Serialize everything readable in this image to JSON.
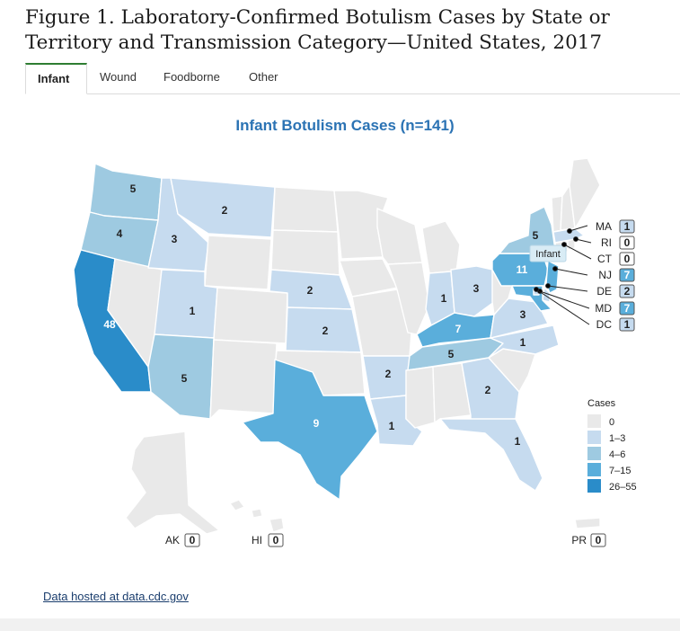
{
  "figure": {
    "title": "Figure 1. Laboratory-Confirmed Botulism Cases by State or Territory and Transmission Category—United States, 2017"
  },
  "tabs": [
    {
      "label": "Infant",
      "active": true
    },
    {
      "label": "Wound",
      "active": false
    },
    {
      "label": "Foodborne",
      "active": false
    },
    {
      "label": "Other",
      "active": false
    }
  ],
  "map": {
    "title": "Infant Botulism Cases (n=141)",
    "tooltip": "Infant",
    "colors": {
      "0": "#e9e9e9",
      "1-3": "#c6dbef",
      "4-6": "#9ecae1",
      "7-15": "#5aaedb",
      "26-55": "#2a8cc9"
    },
    "legend": {
      "title": "Cases",
      "items": [
        {
          "label": "0",
          "color": "#e9e9e9"
        },
        {
          "label": "1–3",
          "color": "#c6dbef"
        },
        {
          "label": "4–6",
          "color": "#9ecae1"
        },
        {
          "label": "7–15",
          "color": "#5aaedb"
        },
        {
          "label": "26–55",
          "color": "#2a8cc9"
        }
      ]
    },
    "states": {
      "WA": 5,
      "OR": 4,
      "CA": 48,
      "ID": 3,
      "MT": 2,
      "UT": 1,
      "AZ": 5,
      "NE": 2,
      "KS": 2,
      "TX": 9,
      "AR": 2,
      "LA": 1,
      "IN": 1,
      "OH": 3,
      "KY": 7,
      "TN": 5,
      "VA": 3,
      "NC": 1,
      "GA": 2,
      "FL": 1,
      "NY": 5,
      "PA": 11,
      "NJ": 7,
      "MD": 7,
      "DE": 2,
      "DC": 1,
      "MA": 1,
      "RI": 0,
      "CT": 0,
      "NV": 0,
      "WY": 0,
      "CO": 0,
      "NM": 0,
      "OK": 0,
      "ND": 0,
      "SD": 0,
      "MN": 0,
      "IA": 0,
      "MO": 0,
      "WI": 0,
      "IL": 0,
      "MI": 0,
      "MS": 0,
      "AL": 0,
      "SC": 0,
      "WV": 0,
      "VT": 0,
      "NH": 0,
      "ME": 0,
      "AK": 0,
      "HI": 0,
      "PR": 0
    },
    "callouts": [
      {
        "code": "MA",
        "value": "1"
      },
      {
        "code": "RI",
        "value": "0"
      },
      {
        "code": "CT",
        "value": "0"
      },
      {
        "code": "NJ",
        "value": "7"
      },
      {
        "code": "DE",
        "value": "2"
      },
      {
        "code": "MD",
        "value": "7"
      },
      {
        "code": "DC",
        "value": "1"
      }
    ],
    "territories": [
      {
        "code": "AK",
        "value": "0"
      },
      {
        "code": "HI",
        "value": "0"
      },
      {
        "code": "PR",
        "value": "0"
      }
    ]
  },
  "footer": {
    "link": "Data hosted at data.cdc.gov"
  }
}
